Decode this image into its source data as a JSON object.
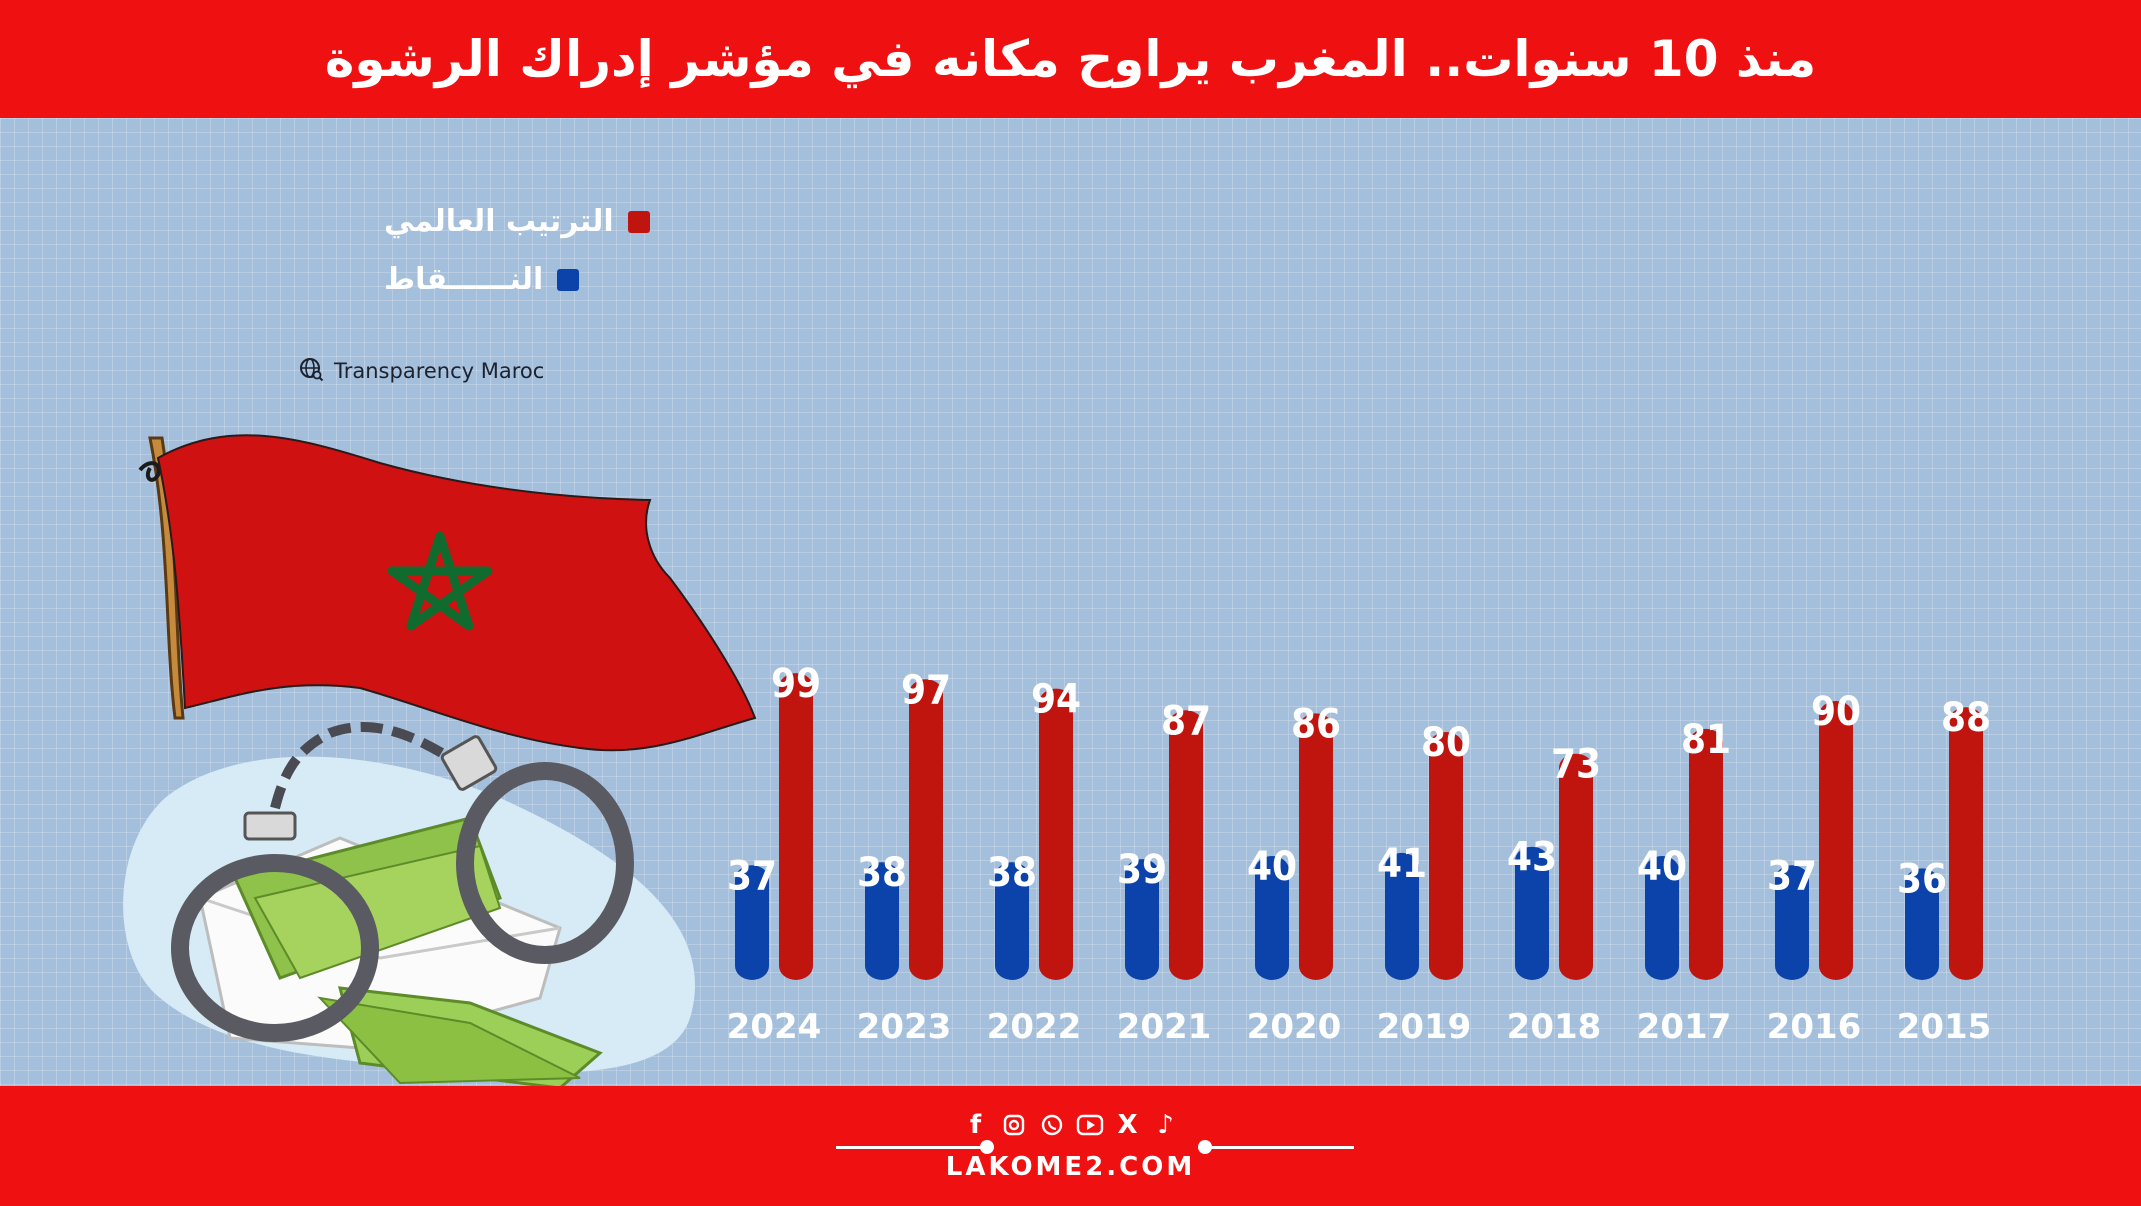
{
  "header": {
    "title": "منذ 10 سنوات.. المغرب يراوح مكانه في مؤشر إدراك الرشوة"
  },
  "legend": {
    "rank_label": "الترتيب العالمي",
    "score_label": "النــــــقاط"
  },
  "source": {
    "text": "Transparency Maroc",
    "icon": "globe-search-icon"
  },
  "colors": {
    "header_bg": "#ef1111",
    "panel_bg": "#a4bfdb",
    "rank_bar": "#c0150f",
    "score_bar": "#0b43aa",
    "label": "#ffffff"
  },
  "illustration": {
    "flag": "morocco-flag",
    "handcuffs": "handcuffs-icon",
    "envelope": "envelope-icon",
    "money": "banknotes-icon"
  },
  "footer": {
    "site": "LAKOME2.COM",
    "social_icons": [
      "facebook-icon",
      "instagram-icon",
      "whatsapp-icon",
      "youtube-icon",
      "x-icon",
      "tiktok-icon"
    ]
  },
  "chart_data": {
    "type": "bar",
    "categories": [
      "2024",
      "2023",
      "2022",
      "2021",
      "2020",
      "2019",
      "2018",
      "2017",
      "2016",
      "2015"
    ],
    "series": [
      {
        "name": "النــــــقاط",
        "color": "#0b43aa",
        "values": [
          37,
          38,
          38,
          39,
          40,
          41,
          43,
          40,
          37,
          36
        ]
      },
      {
        "name": "الترتيب العالمي",
        "color": "#c0150f",
        "values": [
          99,
          97,
          94,
          87,
          86,
          80,
          73,
          81,
          90,
          88
        ]
      }
    ],
    "legend_position": "top-left",
    "grid": true
  }
}
